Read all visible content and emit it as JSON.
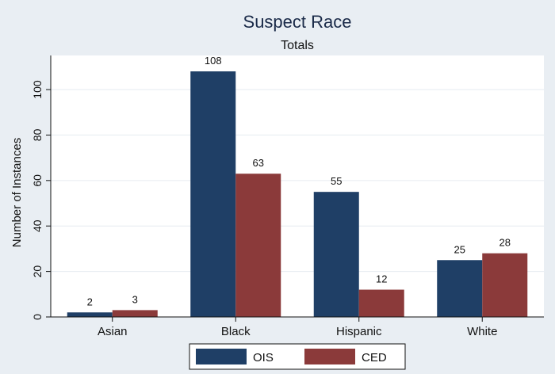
{
  "chart_data": {
    "type": "bar",
    "title": "Suspect Race",
    "subtitle": "Totals",
    "ylabel": "Number of Instances",
    "xlabel": "",
    "ylim": [
      0,
      115
    ],
    "yticks": [
      0,
      20,
      40,
      60,
      80,
      100
    ],
    "categories": [
      "Asian",
      "Black",
      "Hispanic",
      "White"
    ],
    "series": [
      {
        "name": "OIS",
        "values": [
          2,
          108,
          55,
          25
        ],
        "color": "#1f3f66"
      },
      {
        "name": "CED",
        "values": [
          3,
          63,
          12,
          28
        ],
        "color": "#8b3a3a"
      }
    ],
    "legend": "bottom",
    "grid": true
  },
  "colors": {
    "background": "#e9eef3",
    "plot_background": "#ffffff",
    "gridline": "#e6ebf0"
  }
}
